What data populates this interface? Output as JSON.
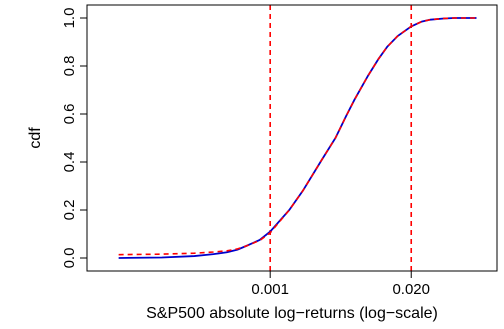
{
  "chart_data": {
    "type": "line",
    "title": "",
    "xlabel": "S&P500 absolute log−returns (log−scale)",
    "ylabel": "cdf",
    "x_scale": "log",
    "xlim": [
      2.75e-05,
      0.1
    ],
    "ylim": [
      0,
      1
    ],
    "x_ticks": [
      {
        "value": 0.001,
        "label": "0.001"
      },
      {
        "value": 0.02,
        "label": "0.020"
      }
    ],
    "y_ticks": [
      {
        "value": 0.0,
        "label": "0.0"
      },
      {
        "value": 0.2,
        "label": "0.2"
      },
      {
        "value": 0.4,
        "label": "0.4"
      },
      {
        "value": 0.6,
        "label": "0.6"
      },
      {
        "value": 0.8,
        "label": "0.8"
      },
      {
        "value": 1.0,
        "label": "1.0"
      }
    ],
    "grid": false,
    "legend": "none",
    "series": [
      {
        "style": "solid",
        "color": "#0000cc",
        "points": [
          [
            4e-05,
            0.0
          ],
          [
            0.0001,
            0.002
          ],
          [
            0.0002,
            0.008
          ],
          [
            0.0003,
            0.016
          ],
          [
            0.0004,
            0.024
          ],
          [
            0.0005,
            0.035
          ],
          [
            0.0006,
            0.05
          ],
          [
            0.0008,
            0.075
          ],
          [
            0.001,
            0.11
          ],
          [
            0.0015,
            0.2
          ],
          [
            0.002,
            0.28
          ],
          [
            0.003,
            0.41
          ],
          [
            0.004,
            0.5
          ],
          [
            0.005,
            0.59
          ],
          [
            0.006,
            0.66
          ],
          [
            0.008,
            0.76
          ],
          [
            0.01,
            0.83
          ],
          [
            0.012,
            0.88
          ],
          [
            0.015,
            0.925
          ],
          [
            0.02,
            0.965
          ],
          [
            0.025,
            0.985
          ],
          [
            0.03,
            0.993
          ],
          [
            0.04,
            0.998
          ],
          [
            0.05,
            1.0
          ],
          [
            0.08,
            1.0
          ]
        ]
      },
      {
        "style": "dashed",
        "color": "#ff0000",
        "points": [
          [
            4e-05,
            0.014
          ],
          [
            0.0001,
            0.016
          ],
          [
            0.0002,
            0.02
          ],
          [
            0.0003,
            0.025
          ],
          [
            0.0004,
            0.03
          ],
          [
            0.0005,
            0.038
          ],
          [
            0.0006,
            0.05
          ],
          [
            0.0008,
            0.073
          ],
          [
            0.001,
            0.105
          ],
          [
            0.0015,
            0.2
          ],
          [
            0.002,
            0.28
          ],
          [
            0.003,
            0.41
          ],
          [
            0.004,
            0.5
          ],
          [
            0.005,
            0.59
          ],
          [
            0.006,
            0.66
          ],
          [
            0.008,
            0.76
          ],
          [
            0.01,
            0.83
          ],
          [
            0.012,
            0.88
          ],
          [
            0.015,
            0.925
          ],
          [
            0.02,
            0.965
          ],
          [
            0.025,
            0.985
          ],
          [
            0.03,
            0.993
          ],
          [
            0.04,
            0.998
          ],
          [
            0.05,
            1.0
          ],
          [
            0.08,
            1.0
          ]
        ]
      }
    ],
    "vertical_lines": [
      {
        "x": 0.001,
        "color": "#ff0000",
        "style": "dashed"
      },
      {
        "x": 0.02,
        "color": "#ff0000",
        "style": "dashed"
      }
    ]
  }
}
